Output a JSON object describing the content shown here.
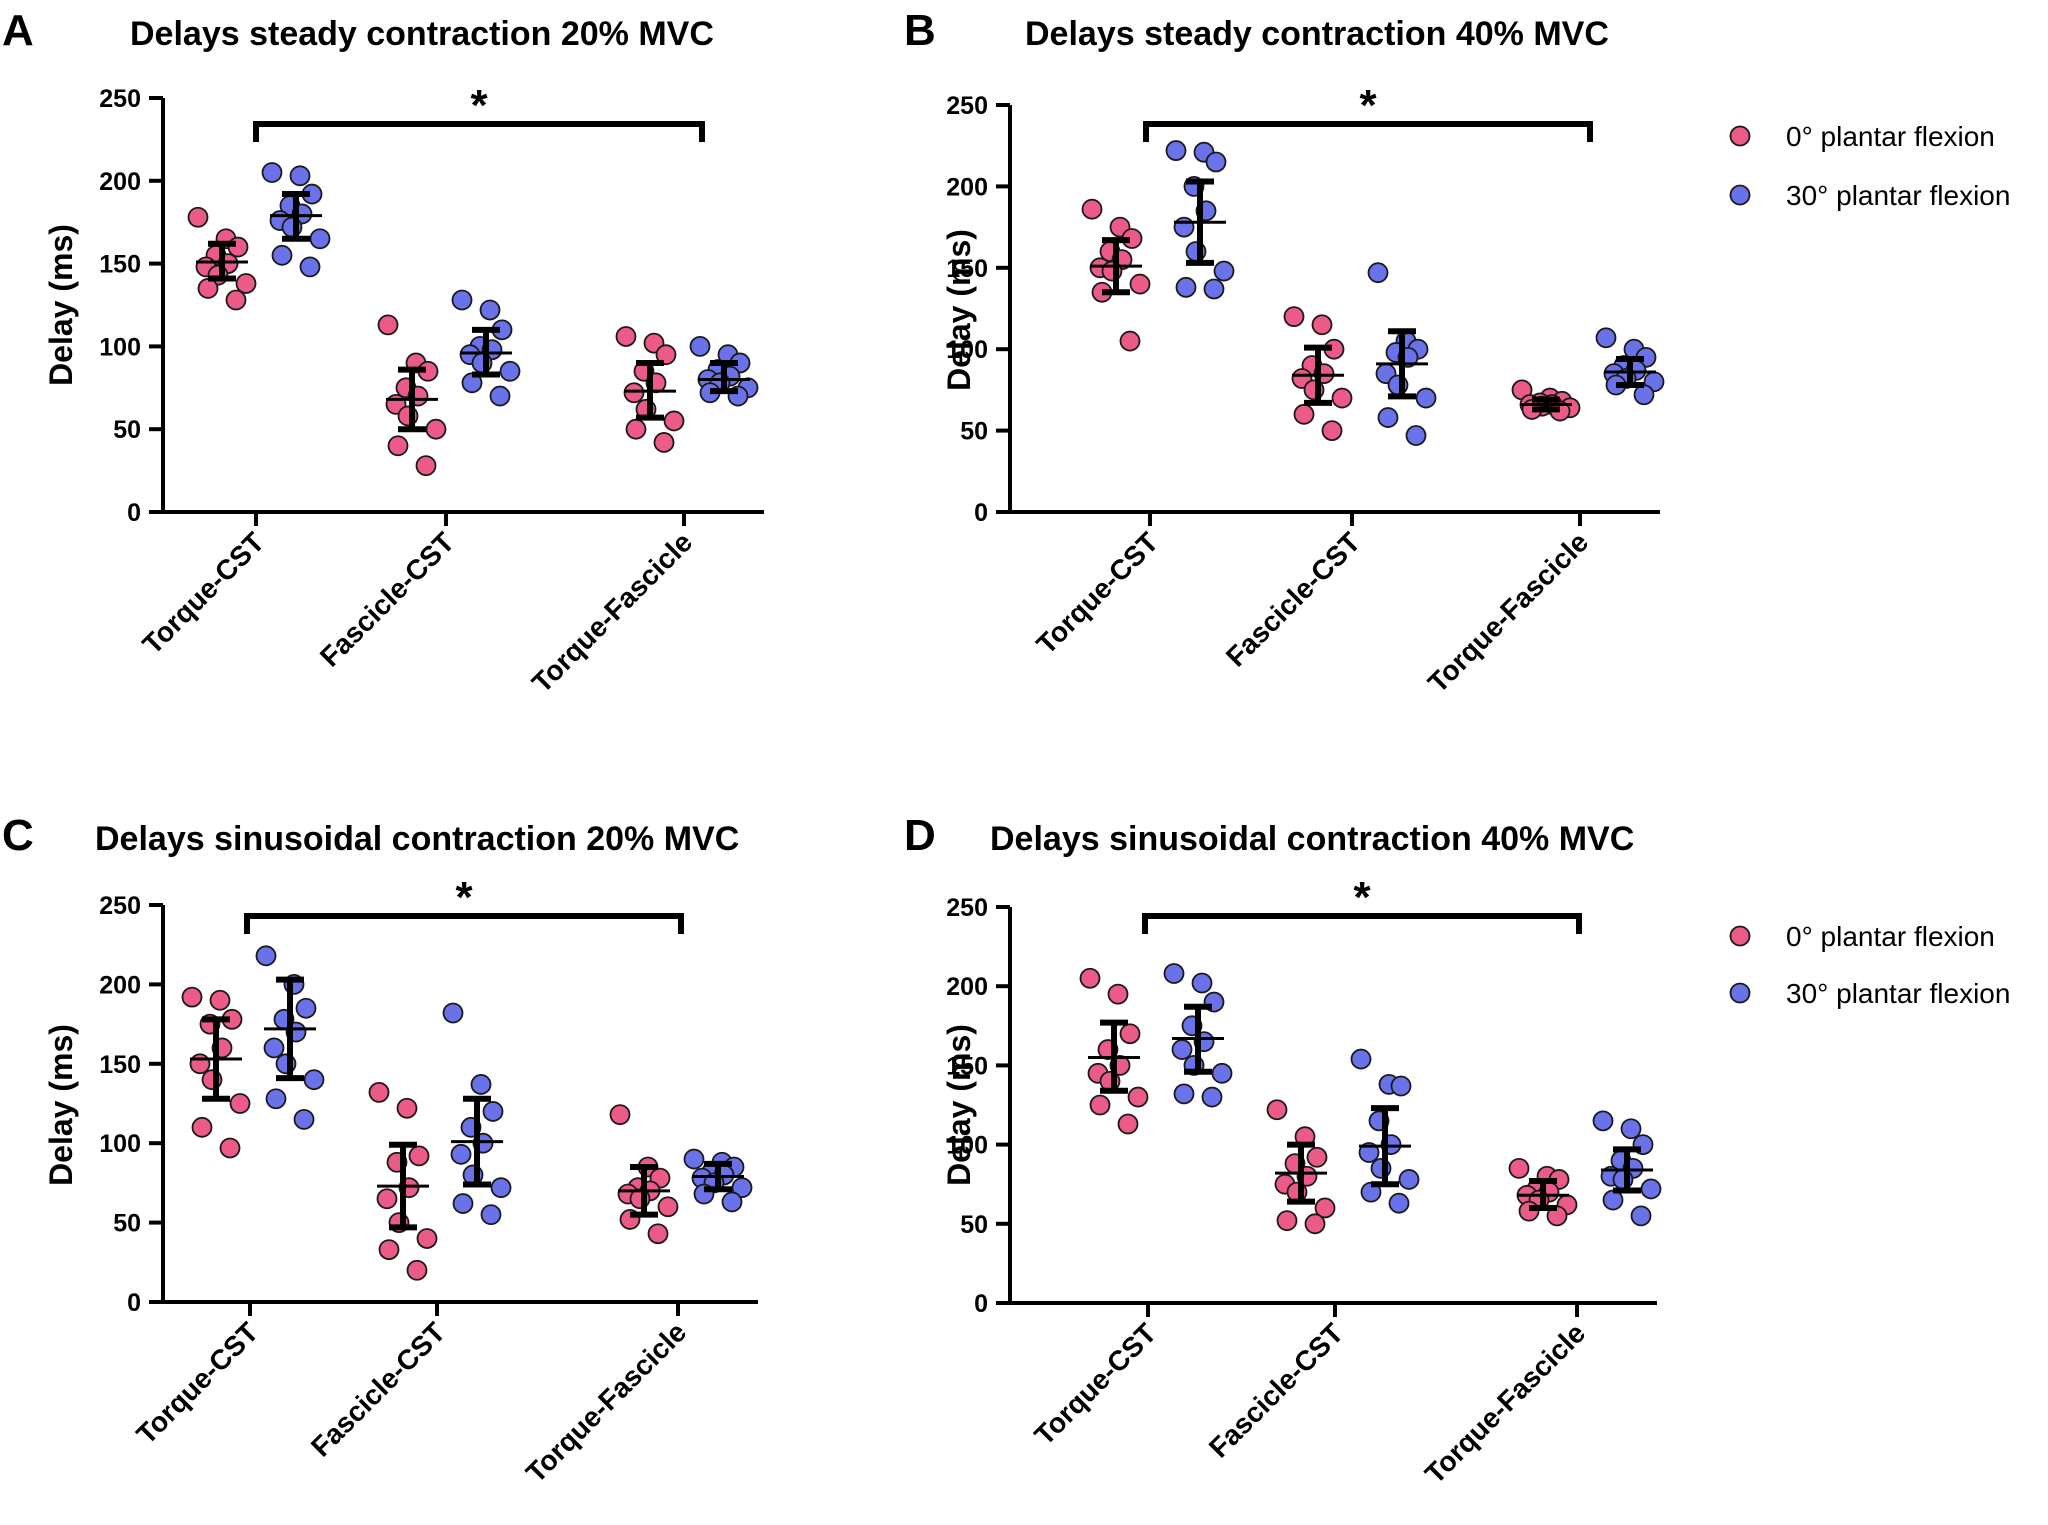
{
  "chart_data": [
    {
      "type": "scatter",
      "panel_letter": "A",
      "title": "Delays steady contraction 20% MVC",
      "xlabel": "",
      "ylabel": "Delay (ms)",
      "ylim": [
        0,
        250
      ],
      "yticks": [
        0,
        50,
        100,
        150,
        200,
        250
      ],
      "categories": [
        "Torque-CST",
        "Fascicle-CST",
        "Torque-Fascicle"
      ],
      "significance": {
        "from": "Torque-CST",
        "to": "Torque-Fascicle",
        "label": "*"
      },
      "show_legend": false,
      "series": [
        {
          "name": "0° plantar flexion",
          "color": "#ec5a87",
          "points": [
            [
              178,
              165,
              160,
              155,
              150,
              148,
              143,
              138,
              135,
              128
            ],
            [
              113,
              90,
              85,
              75,
              70,
              65,
              58,
              50,
              40,
              28
            ],
            [
              106,
              102,
              95,
              85,
              78,
              72,
              62,
              55,
              50,
              42
            ]
          ],
          "mean": [
            151,
            68,
            73
          ],
          "err_low": [
            141,
            50,
            57
          ],
          "err_high": [
            162,
            86,
            90
          ]
        },
        {
          "name": "30° plantar flexion",
          "color": "#6a72ea",
          "points": [
            [
              205,
              203,
              192,
              185,
              180,
              176,
              172,
              165,
              155,
              148
            ],
            [
              128,
              122,
              110,
              100,
              98,
              95,
              90,
              85,
              78,
              70
            ],
            [
              100,
              95,
              90,
              86,
              82,
              80,
              78,
              75,
              72,
              70
            ]
          ],
          "mean": [
            179,
            96,
            80
          ],
          "err_low": [
            165,
            83,
            73
          ],
          "err_high": [
            192,
            110,
            90
          ]
        }
      ]
    },
    {
      "type": "scatter",
      "panel_letter": "B",
      "title": "Delays steady contraction 40% MVC",
      "xlabel": "",
      "ylabel": "Delay (ms)",
      "ylim": [
        0,
        250
      ],
      "yticks": [
        0,
        50,
        100,
        150,
        200,
        250
      ],
      "categories": [
        "Torque-CST",
        "Fascicle-CST",
        "Torque-Fascicle"
      ],
      "significance": {
        "from": "Torque-CST",
        "to": "Torque-Fascicle",
        "label": "*"
      },
      "show_legend": true,
      "series": [
        {
          "name": "0° plantar flexion",
          "color": "#ec5a87",
          "points": [
            [
              186,
              175,
              168,
              160,
              155,
              150,
              148,
              140,
              135,
              105
            ],
            [
              120,
              115,
              100,
              90,
              85,
              82,
              75,
              70,
              60,
              50
            ],
            [
              75,
              70,
              68,
              67,
              66,
              66,
              65,
              64,
              63,
              62
            ]
          ],
          "mean": [
            151,
            84,
            66
          ],
          "err_low": [
            135,
            67,
            63
          ],
          "err_high": [
            167,
            101,
            69
          ]
        },
        {
          "name": "30° plantar flexion",
          "color": "#6a72ea",
          "points": [
            [
              222,
              221,
              215,
              200,
              185,
              175,
              160,
              148,
              138,
              137
            ],
            [
              147,
              105,
              100,
              98,
              95,
              85,
              78,
              70,
              58,
              47
            ],
            [
              107,
              100,
              95,
              90,
              87,
              85,
              82,
              80,
              78,
              72
            ]
          ],
          "mean": [
            178,
            91,
            86
          ],
          "err_low": [
            153,
            71,
            78
          ],
          "err_high": [
            203,
            111,
            94
          ]
        }
      ]
    },
    {
      "type": "scatter",
      "panel_letter": "C",
      "title": "Delays sinusoidal contraction 20% MVC",
      "xlabel": "",
      "ylabel": "Delay (ms)",
      "ylim": [
        0,
        250
      ],
      "yticks": [
        0,
        50,
        100,
        150,
        200,
        250
      ],
      "categories": [
        "Torque-CST",
        "Fascicle-CST",
        "Torque-Fascicle"
      ],
      "significance": {
        "from": "Torque-CST",
        "to": "Torque-Fascicle",
        "label": "*"
      },
      "show_legend": false,
      "series": [
        {
          "name": "0° plantar flexion",
          "color": "#ec5a87",
          "points": [
            [
              192,
              190,
              178,
              175,
              160,
              150,
              140,
              125,
              110,
              97
            ],
            [
              132,
              122,
              92,
              88,
              72,
              65,
              50,
              40,
              33,
              20
            ],
            [
              118,
              85,
              78,
              72,
              70,
              68,
              65,
              60,
              52,
              43
            ]
          ],
          "mean": [
            153,
            73,
            70
          ],
          "err_low": [
            128,
            47,
            55
          ],
          "err_high": [
            178,
            99,
            85
          ]
        },
        {
          "name": "30° plantar flexion",
          "color": "#6a72ea",
          "points": [
            [
              218,
              200,
              185,
              178,
              170,
              160,
              150,
              140,
              128,
              115
            ],
            [
              182,
              137,
              120,
              110,
              100,
              93,
              80,
              72,
              62,
              55
            ],
            [
              90,
              88,
              85,
              82,
              80,
              78,
              75,
              72,
              68,
              63
            ]
          ],
          "mean": [
            172,
            101,
            79
          ],
          "err_low": [
            141,
            74,
            71
          ],
          "err_high": [
            203,
            128,
            87
          ]
        }
      ]
    },
    {
      "type": "scatter",
      "panel_letter": "D",
      "title": "Delays sinusoidal contraction 40% MVC",
      "xlabel": "",
      "ylabel": "Delay (ms)",
      "ylim": [
        0,
        250
      ],
      "yticks": [
        0,
        50,
        100,
        150,
        200,
        250
      ],
      "categories": [
        "Torque-CST",
        "Fascicle-CST",
        "Torque-Fascicle"
      ],
      "significance": {
        "from": "Torque-CST",
        "to": "Torque-Fascicle",
        "label": "*"
      },
      "show_legend": true,
      "series": [
        {
          "name": "0° plantar flexion",
          "color": "#ec5a87",
          "points": [
            [
              205,
              195,
              170,
              160,
              150,
              145,
              140,
              130,
              125,
              113
            ],
            [
              122,
              105,
              92,
              88,
              80,
              75,
              70,
              60,
              52,
              50
            ],
            [
              85,
              80,
              78,
              72,
              70,
              68,
              65,
              62,
              58,
              55
            ]
          ],
          "mean": [
            155,
            82,
            68
          ],
          "err_low": [
            134,
            64,
            60
          ],
          "err_high": [
            177,
            100,
            77
          ]
        },
        {
          "name": "30° plantar flexion",
          "color": "#6a72ea",
          "points": [
            [
              208,
              202,
              190,
              175,
              165,
              160,
              150,
              145,
              132,
              130
            ],
            [
              154,
              138,
              137,
              115,
              100,
              95,
              85,
              78,
              70,
              63
            ],
            [
              115,
              110,
              100,
              90,
              85,
              80,
              78,
              72,
              65,
              55
            ]
          ],
          "mean": [
            167,
            99,
            84
          ],
          "err_low": [
            146,
            75,
            71
          ],
          "err_high": [
            187,
            123,
            97
          ]
        }
      ]
    }
  ]
}
